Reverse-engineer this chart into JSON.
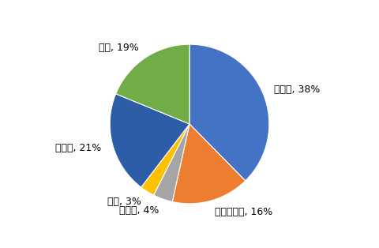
{
  "labels": [
    "たき火",
    "故れ草焼き",
    "たばこ",
    "落雷",
    "その他",
    "不明"
  ],
  "values": [
    38,
    16,
    4,
    3,
    21,
    19
  ],
  "colors": [
    "#4472C4",
    "#ED7D31",
    "#A5A5A5",
    "#FFC000",
    "#2E5DA8",
    "#70AD47"
  ],
  "startangle": 90,
  "background_color": "#FFFFFF",
  "label_fontsize": 9,
  "figsize": [
    4.8,
    3.14
  ],
  "dpi": 100
}
